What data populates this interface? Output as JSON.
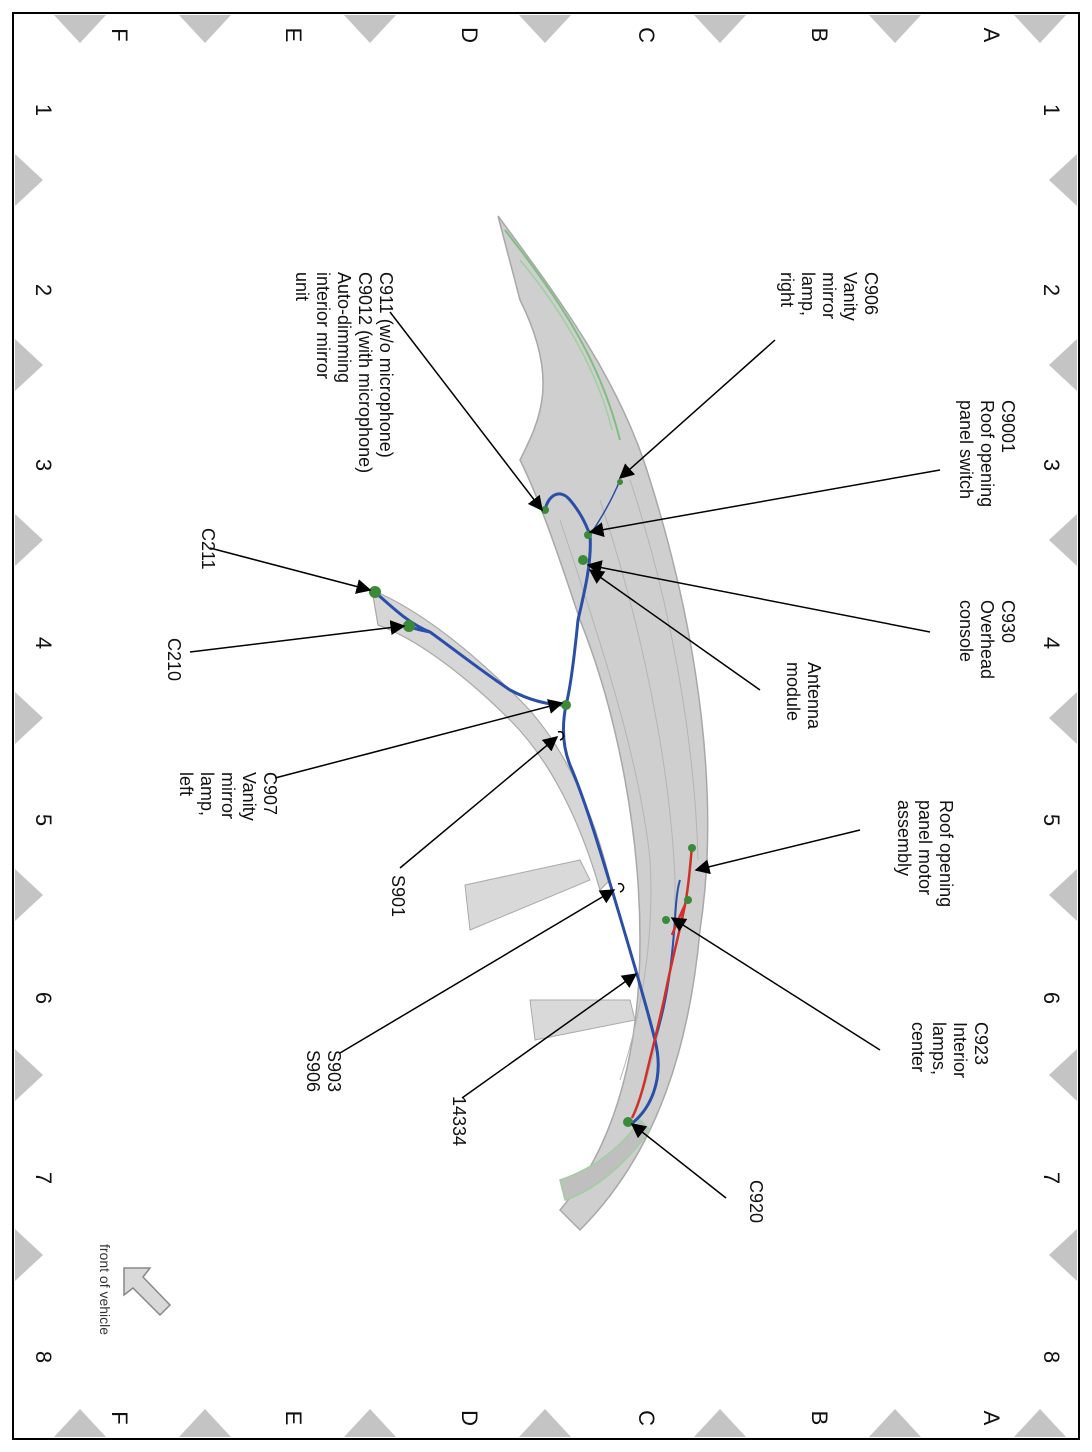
{
  "grid": {
    "rows": [
      "A",
      "B",
      "C",
      "D",
      "E",
      "F"
    ],
    "cols": [
      "1",
      "2",
      "3",
      "4",
      "5",
      "6",
      "7",
      "8"
    ]
  },
  "labels": {
    "c906": [
      "C906",
      "Vanity",
      "mirror",
      "lamp,",
      "right"
    ],
    "c9001": [
      "C9001",
      "Roof opening",
      "panel switch"
    ],
    "c930": [
      "C930",
      "Overhead",
      "console"
    ],
    "antenna": [
      "Antenna",
      "module"
    ],
    "roof_motor": [
      "Roof opening",
      "panel motor",
      "assembly"
    ],
    "c923": [
      "C923",
      "Interior",
      "lamps,",
      "center"
    ],
    "c920": [
      "C920"
    ],
    "c911": [
      "C911  (w/o microphone)",
      "C9012  (with microphone)",
      "Auto-dimming",
      "interior mirror",
      "unit"
    ],
    "c211": [
      "C211"
    ],
    "c210": [
      "C210"
    ],
    "c907": [
      "C907",
      "Vanity",
      "mirror",
      "lamp,",
      "left"
    ],
    "s901": [
      "S901"
    ],
    "s903": [
      "S903",
      "S906"
    ],
    "h14334": [
      "14334"
    ],
    "front": [
      "front of vehicle"
    ]
  },
  "colors": {
    "harness_blue": "#2a4fa8",
    "harness_red": "#d0302a",
    "connector_green": "#3a8a3a",
    "roof_gray": "#c8c8c8",
    "triangle_gray": "#c4c4c4"
  }
}
